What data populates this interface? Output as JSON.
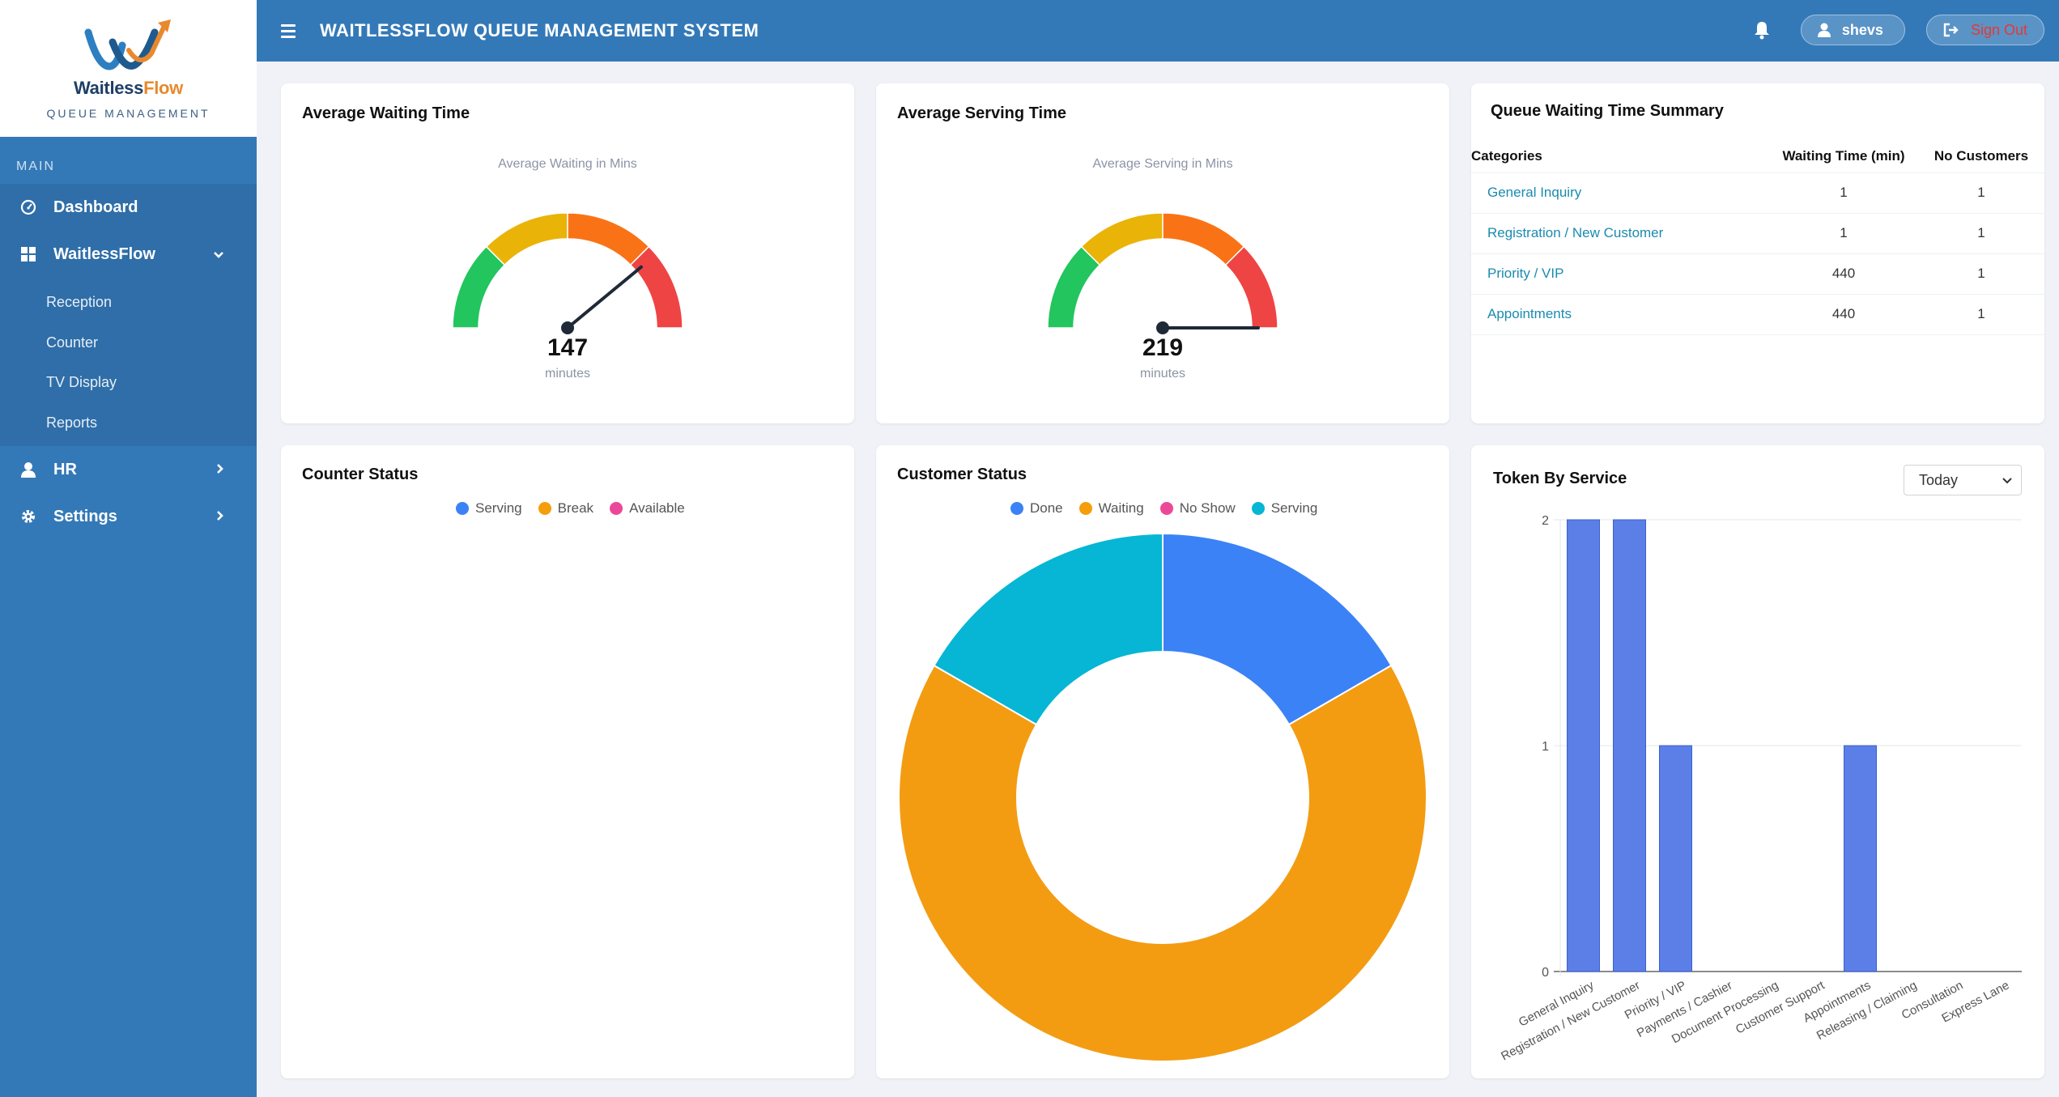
{
  "app": {
    "logo_name_part1": "Waitless",
    "logo_name_part2": "Flow",
    "logo_tagline": "QUEUE MANAGEMENT",
    "title": "WAITLESSFLOW QUEUE MANAGEMENT SYSTEM"
  },
  "header": {
    "user_name": "shevs",
    "signout_label": "Sign Out"
  },
  "sidebar": {
    "section_label": "MAIN",
    "dashboard_label": "Dashboard",
    "waitlessflow_label": "WaitlessFlow",
    "sub_items": [
      "Reception",
      "Counter",
      "TV Display",
      "Reports"
    ],
    "hr_label": "HR",
    "settings_label": "Settings"
  },
  "avg_waiting": {
    "title": "Average Waiting Time",
    "caption": "Average Waiting in Mins",
    "value": "147",
    "unit": "minutes",
    "needle_fraction": 0.78
  },
  "avg_serving": {
    "title": "Average Serving Time",
    "caption": "Average Serving in Mins",
    "value": "219",
    "unit": "minutes",
    "needle_fraction": 1.0
  },
  "summary": {
    "title": "Queue Waiting Time Summary",
    "headers": [
      "Categories",
      "Waiting Time (min)",
      "No Customers"
    ],
    "rows": [
      [
        "General Inquiry",
        "1",
        "1"
      ],
      [
        "Registration / New Customer",
        "1",
        "1"
      ],
      [
        "Priority / VIP",
        "440",
        "1"
      ],
      [
        "Appointments",
        "440",
        "1"
      ]
    ]
  },
  "counter_status": {
    "title": "Counter Status",
    "legend": [
      {
        "label": "Serving",
        "color": "#3b82f6"
      },
      {
        "label": "Break",
        "color": "#f59e0b"
      },
      {
        "label": "Available",
        "color": "#ec4899"
      }
    ]
  },
  "customer_status": {
    "title": "Customer Status",
    "legend": [
      {
        "label": "Done",
        "color": "#3b82f6"
      },
      {
        "label": "Waiting",
        "color": "#f59e0b"
      },
      {
        "label": "No Show",
        "color": "#ec4899"
      },
      {
        "label": "Serving",
        "color": "#06b6d4"
      }
    ]
  },
  "token_by_service": {
    "title": "Token By Service",
    "filter_value": "Today"
  },
  "chart_data": [
    {
      "type": "pie",
      "title": "Customer Status",
      "categories": [
        "Done",
        "Waiting",
        "No Show",
        "Serving"
      ],
      "values": [
        1,
        4,
        0,
        1
      ],
      "colors": [
        "#3b82f6",
        "#f39c12",
        "#ec4899",
        "#06b6d4"
      ],
      "donut": true,
      "legend": "top"
    },
    {
      "type": "bar",
      "title": "Token By Service",
      "categories": [
        "General Inquiry",
        "Registration / New Customer",
        "Priority / VIP",
        "Payments / Cashier",
        "Document Processing",
        "Customer Support",
        "Appointments",
        "Releasing / Claiming",
        "Consultation",
        "Express Lane"
      ],
      "values": [
        2,
        2,
        1,
        0,
        0,
        0,
        1,
        0,
        0,
        0
      ],
      "ylim": [
        0,
        2
      ],
      "yticks": [
        "0",
        "1",
        "2"
      ],
      "color": "#5b7fe6",
      "grid": true
    }
  ]
}
